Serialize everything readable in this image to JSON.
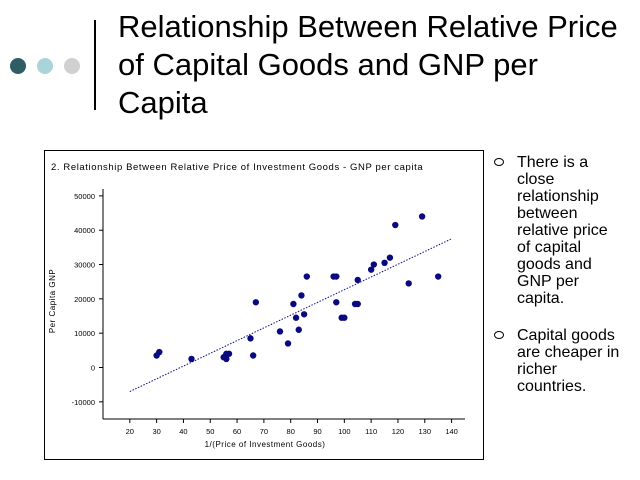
{
  "slide": {
    "title": "Relationship Between Relative Price of Capital Goods and GNP per Capita",
    "bullets": [
      "There is a close relationship between relative price of capital goods and GNP per capita.",
      "Capital goods are cheaper in richer countries."
    ]
  },
  "chart_data": {
    "type": "scatter",
    "title": "2.  Relationship Between Relative Price of Investment Goods - GNP per capita",
    "xlabel": "1/(Price of Investment Goods)",
    "ylabel": "Per Capita GNP",
    "xlim": [
      10,
      145
    ],
    "ylim": [
      -15000,
      52000
    ],
    "xticks": [
      20,
      30,
      40,
      50,
      60,
      70,
      80,
      90,
      100,
      110,
      120,
      130,
      140
    ],
    "yticks": [
      -10000,
      0,
      10000,
      20000,
      30000,
      40000,
      50000
    ],
    "grid": false,
    "colors": {
      "points": "#0a0a80",
      "trendline": "#0a0a80"
    },
    "trendline": {
      "x": [
        20,
        140
      ],
      "y": [
        -7000,
        37500
      ],
      "style": "dotted"
    },
    "points": [
      [
        30,
        3500
      ],
      [
        31,
        4500
      ],
      [
        43,
        2500
      ],
      [
        55,
        3000
      ],
      [
        56,
        2500
      ],
      [
        56,
        4000
      ],
      [
        57,
        4000
      ],
      [
        65,
        8500
      ],
      [
        66,
        3500
      ],
      [
        67,
        19000
      ],
      [
        76,
        10500
      ],
      [
        79,
        7000
      ],
      [
        81,
        18500
      ],
      [
        82,
        14500
      ],
      [
        83,
        11000
      ],
      [
        84,
        21000
      ],
      [
        85,
        15500
      ],
      [
        86,
        26500
      ],
      [
        96,
        26500
      ],
      [
        97,
        26500
      ],
      [
        97,
        19000
      ],
      [
        99,
        14500
      ],
      [
        100,
        14500
      ],
      [
        104,
        18500
      ],
      [
        105,
        18500
      ],
      [
        105,
        25500
      ],
      [
        110,
        28500
      ],
      [
        111,
        30000
      ],
      [
        115,
        30500
      ],
      [
        117,
        32000
      ],
      [
        119,
        41500
      ],
      [
        124,
        24500
      ],
      [
        129,
        44000
      ],
      [
        135,
        26500
      ]
    ]
  }
}
